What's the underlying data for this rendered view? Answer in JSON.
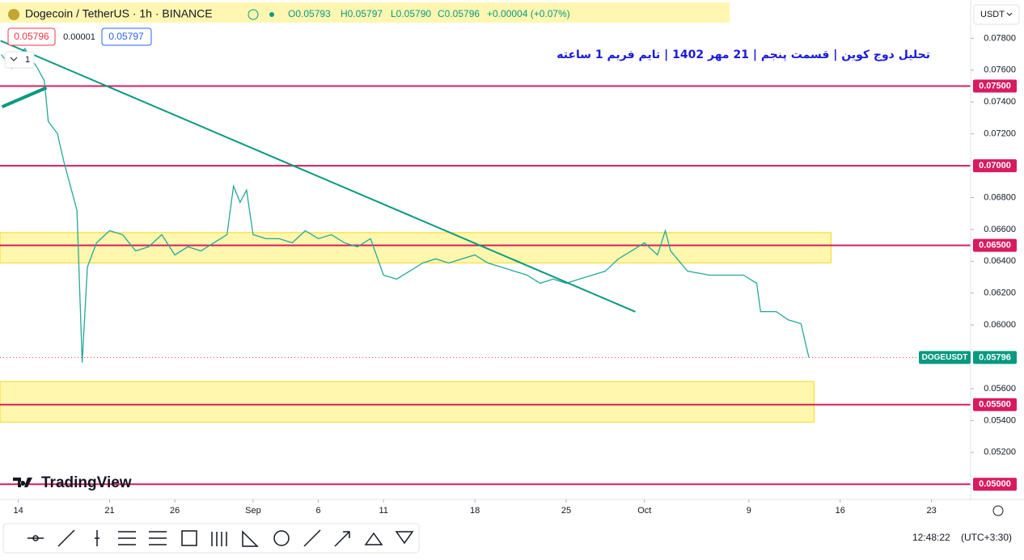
{
  "chart_data": {
    "type": "line",
    "title": "Dogecoin / TetherUS · 1h · BINANCE",
    "ohlc": {
      "open": "O0.05793",
      "high": "H0.05797",
      "low": "L0.05790",
      "close": "C0.05796",
      "change": "+0.00004 (+0.07%)"
    },
    "quote": {
      "bid": "0.05796",
      "spread": "0.00001",
      "ask": "0.05797"
    },
    "indicator_count": "1",
    "annotation": "تحلیل دوج کوین | قسمت پنجم | 21 مهر 1402 | تایم فریم 1 ساعته",
    "currency": "USDT",
    "brand": "TradingView",
    "clock": "12:48:22",
    "timezone": "(UTC+3:30)",
    "x": [
      -1.3,
      -0.5,
      0.5,
      1.5,
      2.0,
      2.3,
      3.0,
      3.5,
      4.0,
      4.5,
      4.9,
      5.3,
      6,
      7,
      8,
      9,
      10,
      11,
      12,
      13,
      14,
      15,
      16,
      16.5,
      17,
      17.5,
      18,
      19,
      20,
      21,
      22,
      23,
      24,
      25,
      26,
      27,
      28,
      29,
      30,
      31,
      32,
      33,
      34,
      35,
      36,
      37,
      38,
      39,
      40,
      41,
      42,
      43,
      44,
      45,
      46,
      47,
      48,
      49,
      49.6,
      50,
      51.3,
      53,
      55.6,
      56.6,
      56.9,
      58.1,
      59.0,
      60.0,
      60.6
    ],
    "series": [
      {
        "name": "DOGEUSDT",
        "color": "#26a69a",
        "values": [
          0.07698,
          0.07612,
          0.07736,
          0.07609,
          0.07533,
          0.07278,
          0.07202,
          0.07024,
          0.06872,
          0.06719,
          0.05764,
          0.06364,
          0.06516,
          0.06592,
          0.06567,
          0.06465,
          0.06491,
          0.06567,
          0.0644,
          0.06491,
          0.06465,
          0.06516,
          0.06567,
          0.06872,
          0.0677,
          0.06847,
          0.06567,
          0.06542,
          0.06542,
          0.06516,
          0.06592,
          0.06542,
          0.06567,
          0.06516,
          0.06491,
          0.06542,
          0.06313,
          0.06288,
          0.06338,
          0.06389,
          0.06415,
          0.06389,
          0.06415,
          0.0644,
          0.06389,
          0.06364,
          0.06338,
          0.06313,
          0.06262,
          0.06288,
          0.06262,
          0.06288,
          0.06313,
          0.06338,
          0.06415,
          0.06465,
          0.06516,
          0.0644,
          0.06592,
          0.06465,
          0.06338,
          0.06313,
          0.06313,
          0.06262,
          0.06084,
          0.06084,
          0.06033,
          0.06008,
          0.05796
        ]
      }
    ],
    "last_price": {
      "value": 0.05796,
      "label": "0.05796"
    },
    "levels": [
      {
        "value": 0.075,
        "label": "0.07500"
      },
      {
        "value": 0.07,
        "label": "0.07000"
      },
      {
        "value": 0.065,
        "label": "0.06500"
      },
      {
        "value": 0.055,
        "label": "0.05500"
      },
      {
        "value": 0.05,
        "label": "0.05000"
      }
    ],
    "zones": [
      {
        "xmin": -1.4,
        "xmax": 62.3,
        "ymin": 0.0639,
        "ymax": 0.0658
      },
      {
        "xmin": -1.4,
        "xmax": 61.0,
        "ymin": 0.0539,
        "ymax": 0.05645
      }
    ],
    "trendlines": [
      {
        "x": [
          -1.36,
          47.3
        ],
        "y": [
          0.07785,
          0.06083
        ],
        "color": "#089981"
      },
      {
        "x": [
          -1.24,
          2.17
        ],
        "y": [
          0.0737,
          0.0749
        ],
        "color": "#089981"
      }
    ],
    "xlim": [
      -1.4,
      73
    ],
    "ylim": [
      0.0492,
      0.08
    ],
    "xticks": [
      {
        "value": 0,
        "label": "14"
      },
      {
        "value": 7,
        "label": "21"
      },
      {
        "value": 12,
        "label": "26"
      },
      {
        "value": 18,
        "label": "Sep"
      },
      {
        "value": 23,
        "label": "6"
      },
      {
        "value": 28,
        "label": "11"
      },
      {
        "value": 35,
        "label": "18"
      },
      {
        "value": 42,
        "label": "25"
      },
      {
        "value": 48,
        "label": "Oct"
      },
      {
        "value": 56,
        "label": "9"
      },
      {
        "value": 63,
        "label": "16"
      },
      {
        "value": 70,
        "label": "23"
      }
    ],
    "yticks": [
      {
        "value": 0.078,
        "label": "0.07800"
      },
      {
        "value": 0.076,
        "label": "0.07600"
      },
      {
        "value": 0.074,
        "label": "0.07400"
      },
      {
        "value": 0.072,
        "label": "0.07200"
      },
      {
        "value": 0.068,
        "label": "0.06800"
      },
      {
        "value": 0.066,
        "label": "0.06600"
      },
      {
        "value": 0.064,
        "label": "0.06400"
      },
      {
        "value": 0.062,
        "label": "0.06200"
      },
      {
        "value": 0.06,
        "label": "0.06000"
      },
      {
        "value": 0.056,
        "label": "0.05600"
      },
      {
        "value": 0.054,
        "label": "0.05400"
      },
      {
        "value": 0.052,
        "label": "0.05200"
      }
    ]
  }
}
